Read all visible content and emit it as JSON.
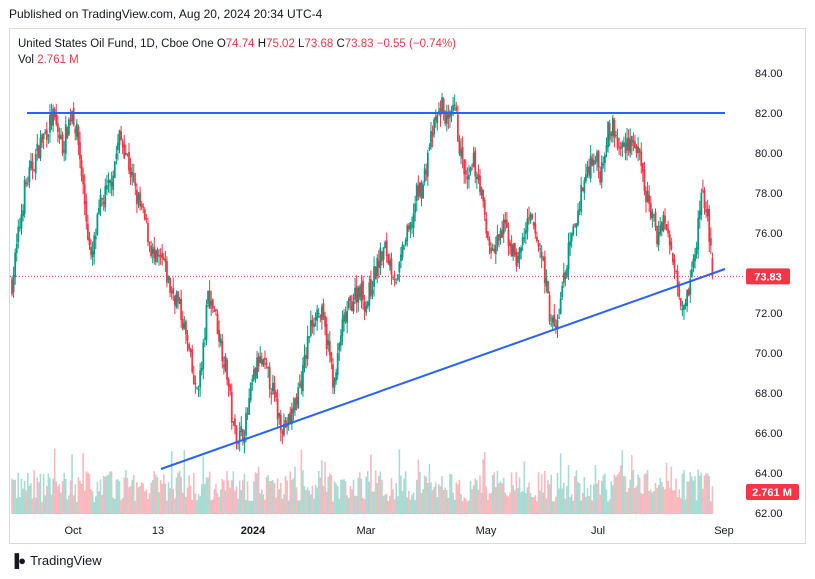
{
  "published": "Published on TradingView.com, Aug 20, 2024 20:34 UTC-4",
  "legend": {
    "symbol": "United States Oil Fund, 1D, Cboe One",
    "open_label": "O",
    "open": "74.74",
    "high_label": "H",
    "high": "75.02",
    "low_label": "L",
    "low": "73.68",
    "close_label": "C",
    "close": "73.83",
    "change": "−0.55 (−0.74%)",
    "vol_label": "Vol",
    "vol_value": "2.761 M"
  },
  "brand": "TradingView",
  "colors": {
    "up": "#089981",
    "down": "#f23645",
    "line": "#2962ff",
    "price_tag": "#f23645"
  },
  "chart_data": {
    "type": "candlestick",
    "ylim": [
      62,
      84.5
    ],
    "y_ticks": [
      62,
      64,
      66,
      68,
      70,
      72,
      74,
      76,
      78,
      80,
      82,
      84
    ],
    "y_tick_labels": [
      "62.00",
      "64.00",
      "66.00",
      "68.00",
      "70.00",
      "72.00",
      "74.00",
      "76.00",
      "78.00",
      "80.00",
      "82.00",
      "84.00"
    ],
    "x_labels": [
      "Oct",
      "13",
      "2024",
      "Mar",
      "May",
      "Jul",
      "Sep"
    ],
    "last_price": 73.83,
    "last_price_label": "73.83",
    "last_volume_label": "2.761 M",
    "horizontal_level": 82.0,
    "trendline": {
      "start_price": 64.2,
      "end_price": 74.2
    },
    "close_path": [
      [
        0,
        73.5
      ],
      [
        8,
        78.2
      ],
      [
        18,
        80.5
      ],
      [
        26,
        81.8
      ],
      [
        32,
        80.3
      ],
      [
        38,
        82.2
      ],
      [
        42,
        80.5
      ],
      [
        46,
        77.5
      ],
      [
        50,
        74.5
      ],
      [
        56,
        77.4
      ],
      [
        62,
        78.4
      ],
      [
        68,
        80.8
      ],
      [
        72,
        80.1
      ],
      [
        78,
        78.0
      ],
      [
        84,
        76.6
      ],
      [
        90,
        74.6
      ],
      [
        96,
        74.5
      ],
      [
        100,
        73.2
      ],
      [
        104,
        72.8
      ],
      [
        108,
        71.6
      ],
      [
        112,
        70.0
      ],
      [
        116,
        68.0
      ],
      [
        120,
        69.2
      ],
      [
        124,
        72.9
      ],
      [
        128,
        72.2
      ],
      [
        132,
        70.5
      ],
      [
        136,
        69.0
      ],
      [
        140,
        66.2
      ],
      [
        144,
        65.8
      ],
      [
        148,
        66.5
      ],
      [
        152,
        68.5
      ],
      [
        156,
        69.6
      ],
      [
        160,
        69.2
      ],
      [
        164,
        68.4
      ],
      [
        168,
        67.0
      ],
      [
        172,
        66.3
      ],
      [
        176,
        66.6
      ],
      [
        180,
        67.8
      ],
      [
        184,
        69.0
      ],
      [
        188,
        71.0
      ],
      [
        192,
        72.2
      ],
      [
        196,
        71.8
      ],
      [
        200,
        70.3
      ],
      [
        204,
        68.3
      ],
      [
        208,
        71.0
      ],
      [
        212,
        72.0
      ],
      [
        216,
        72.8
      ],
      [
        220,
        73.3
      ],
      [
        224,
        72.4
      ],
      [
        228,
        73.6
      ],
      [
        232,
        74.6
      ],
      [
        236,
        75.2
      ],
      [
        240,
        74.3
      ],
      [
        244,
        73.6
      ],
      [
        248,
        75.5
      ],
      [
        252,
        76.2
      ],
      [
        256,
        77.9
      ],
      [
        260,
        78.4
      ],
      [
        264,
        80.4
      ],
      [
        268,
        81.5
      ],
      [
        272,
        82.4
      ],
      [
        276,
        81.3
      ],
      [
        280,
        82.2
      ],
      [
        284,
        79.8
      ],
      [
        288,
        78.3
      ],
      [
        292,
        79.5
      ],
      [
        296,
        78.5
      ],
      [
        300,
        76.0
      ],
      [
        304,
        75.0
      ],
      [
        308,
        75.7
      ],
      [
        312,
        76.3
      ],
      [
        316,
        75.2
      ],
      [
        320,
        74.6
      ],
      [
        324,
        76.0
      ],
      [
        328,
        76.6
      ],
      [
        332,
        75.6
      ],
      [
        336,
        74.6
      ],
      [
        340,
        72.0
      ],
      [
        344,
        71.0
      ],
      [
        348,
        73.2
      ],
      [
        352,
        75.0
      ],
      [
        356,
        76.3
      ],
      [
        360,
        78.0
      ],
      [
        364,
        79.2
      ],
      [
        368,
        80.0
      ],
      [
        372,
        79.0
      ],
      [
        376,
        80.9
      ],
      [
        380,
        81.3
      ],
      [
        384,
        80.1
      ],
      [
        388,
        80.5
      ],
      [
        392,
        80.7
      ],
      [
        396,
        79.9
      ],
      [
        400,
        78.2
      ],
      [
        404,
        77.1
      ],
      [
        408,
        75.8
      ],
      [
        412,
        76.9
      ],
      [
        416,
        75.3
      ],
      [
        420,
        74.2
      ],
      [
        424,
        72.4
      ],
      [
        428,
        73.3
      ],
      [
        432,
        74.8
      ],
      [
        436,
        78.1
      ],
      [
        440,
        77.0
      ],
      [
        443,
        73.83
      ]
    ]
  }
}
